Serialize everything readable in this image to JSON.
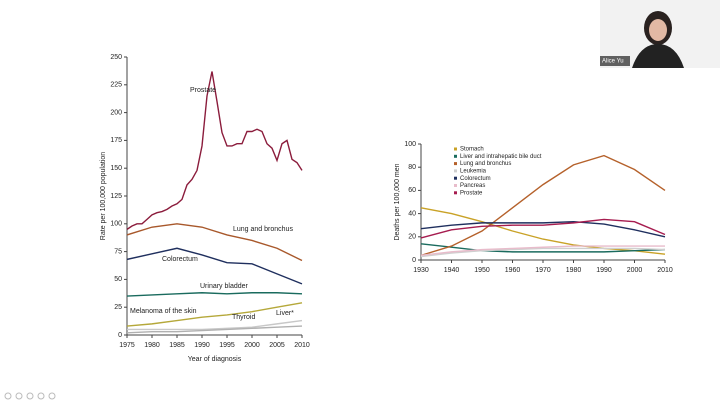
{
  "participant": "Alice Yu",
  "chart_data": [
    {
      "type": "line",
      "xlabel": "Year of diagnosis",
      "ylabel": "Rate per 100,000 population",
      "xlim": [
        1975,
        2010
      ],
      "xticks": [
        1975,
        1980,
        1985,
        1990,
        1995,
        2000,
        2005,
        2010
      ],
      "ylim": [
        0,
        250
      ],
      "yticks": [
        0,
        25,
        50,
        75,
        100,
        125,
        150,
        175,
        200,
        225,
        250
      ],
      "legend": "inline",
      "series": [
        {
          "name": "Prostate",
          "color": "#8b1c3c",
          "x": [
            1975,
            1976,
            1977,
            1978,
            1979,
            1980,
            1981,
            1982,
            1983,
            1984,
            1985,
            1986,
            1987,
            1988,
            1989,
            1990,
            1991,
            1992,
            1993,
            1994,
            1995,
            1996,
            1997,
            1998,
            1999,
            2000,
            2001,
            2002,
            2003,
            2004,
            2005,
            2006,
            2007,
            2008,
            2009,
            2010
          ],
          "values": [
            95,
            98,
            100,
            100,
            104,
            108,
            110,
            111,
            113,
            116,
            118,
            122,
            135,
            140,
            148,
            170,
            215,
            237,
            210,
            182,
            170,
            170,
            172,
            172,
            183,
            183,
            185,
            183,
            172,
            168,
            157,
            172,
            175,
            158,
            155,
            148
          ]
        },
        {
          "name": "Lung and bronchus",
          "color": "#a8582b",
          "x": [
            1975,
            1980,
            1985,
            1990,
            1995,
            2000,
            2005,
            2010
          ],
          "values": [
            90,
            97,
            100,
            97,
            90,
            85,
            78,
            67
          ]
        },
        {
          "name": "Colorectum",
          "color": "#1f2f5e",
          "x": [
            1975,
            1980,
            1985,
            1990,
            1995,
            2000,
            2005,
            2010
          ],
          "values": [
            68,
            73,
            78,
            72,
            65,
            64,
            55,
            46
          ]
        },
        {
          "name": "Urinary bladder",
          "color": "#1a6b5e",
          "x": [
            1975,
            1980,
            1985,
            1990,
            1995,
            2000,
            2005,
            2010
          ],
          "values": [
            35,
            36,
            37,
            38,
            37,
            38,
            38,
            37
          ]
        },
        {
          "name": "Melanoma of the skin",
          "color": "#b5a83a",
          "x": [
            1975,
            1980,
            1985,
            1990,
            1995,
            2000,
            2005,
            2010
          ],
          "values": [
            8,
            10,
            13,
            16,
            18,
            21,
            25,
            29
          ]
        },
        {
          "name": "Thyroid",
          "color": "#c8c8c8",
          "x": [
            1975,
            1980,
            1985,
            1990,
            1995,
            2000,
            2005,
            2010
          ],
          "values": [
            5,
            5,
            5,
            5,
            6,
            7,
            10,
            13
          ]
        },
        {
          "name": "Liver*",
          "color": "#b0b0b0",
          "x": [
            1975,
            1980,
            1985,
            1990,
            1995,
            2000,
            2005,
            2010
          ],
          "values": [
            2,
            3,
            3,
            4,
            5,
            6,
            7,
            8
          ]
        }
      ]
    },
    {
      "type": "line",
      "ylabel": "Deaths per 100,000 men",
      "x": [
        1930,
        1940,
        1950,
        1960,
        1970,
        1980,
        1990,
        2000,
        2010
      ],
      "xlim": [
        1930,
        2010
      ],
      "xticks": [
        1930,
        1940,
        1950,
        1960,
        1970,
        1980,
        1990,
        2000,
        2010
      ],
      "ylim": [
        0,
        100
      ],
      "yticks": [
        0,
        20,
        40,
        60,
        80,
        100
      ],
      "legend": "upper left",
      "series": [
        {
          "name": "Stomach",
          "color": "#c9a227",
          "values": [
            45,
            40,
            33,
            25,
            18,
            13,
            10,
            8,
            5
          ]
        },
        {
          "name": "Liver and intrahepatic bile duct",
          "color": "#1a6b5e",
          "values": [
            14,
            11,
            8,
            7,
            7,
            7,
            7,
            8,
            9
          ]
        },
        {
          "name": "Lung and bronchus",
          "color": "#b5612b",
          "values": [
            4,
            12,
            25,
            45,
            65,
            82,
            90,
            78,
            60
          ]
        },
        {
          "name": "Leukemia",
          "color": "#cfcfcf",
          "values": [
            3,
            6,
            8,
            9,
            10,
            10,
            10,
            10,
            9
          ]
        },
        {
          "name": "Colorectum",
          "color": "#1f2f5e",
          "values": [
            27,
            30,
            32,
            32,
            32,
            33,
            31,
            26,
            20
          ]
        },
        {
          "name": "Pancreas",
          "color": "#e8bccb",
          "values": [
            4,
            7,
            9,
            10,
            11,
            12,
            12,
            12,
            12
          ]
        },
        {
          "name": "Prostate",
          "color": "#a61c4f",
          "values": [
            19,
            26,
            29,
            30,
            30,
            32,
            35,
            33,
            22
          ]
        }
      ]
    }
  ]
}
